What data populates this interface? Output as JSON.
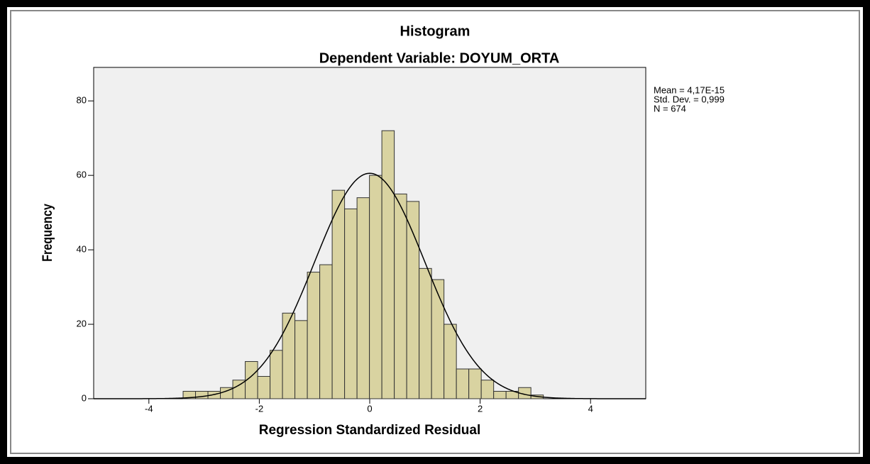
{
  "chart_data": {
    "type": "histogram",
    "title": "Histogram",
    "subtitle": "Dependent Variable: DOYUM_ORTA",
    "x_label": "Regression Standardized Residual",
    "y_label": "Frequency",
    "bins": [
      -3.38,
      -3.155,
      -2.93,
      -2.705,
      -2.48,
      -2.255,
      -2.03,
      -1.805,
      -1.58,
      -1.355,
      -1.13,
      -0.905,
      -0.68,
      -0.455,
      -0.23,
      -0.005,
      0.22,
      0.445,
      0.67,
      0.895,
      1.12,
      1.345,
      1.57,
      1.795,
      2.02,
      2.245,
      2.47,
      2.695,
      2.92,
      3.145
    ],
    "values": [
      2,
      2,
      2,
      3,
      5,
      10,
      6,
      13,
      23,
      21,
      34,
      36,
      56,
      51,
      54,
      60,
      72,
      55,
      53,
      35,
      32,
      20,
      8,
      8,
      5,
      2,
      2,
      3,
      1
    ],
    "color": "#d9d3a1",
    "stats": {
      "mean": {
        "value": 4.17e-15,
        "label": "Mean = 4,17E-15"
      },
      "std_dev": {
        "value": 0.999,
        "label": "Std. Dev. = 0,999"
      },
      "n": {
        "value": 674,
        "label": "N = 674"
      }
    },
    "xlim": [
      -5,
      5
    ],
    "xticks": [
      -4,
      -2,
      0,
      2,
      4
    ],
    "ylim": [
      0,
      89
    ],
    "yticks": [
      0,
      20,
      40,
      60,
      80
    ]
  }
}
